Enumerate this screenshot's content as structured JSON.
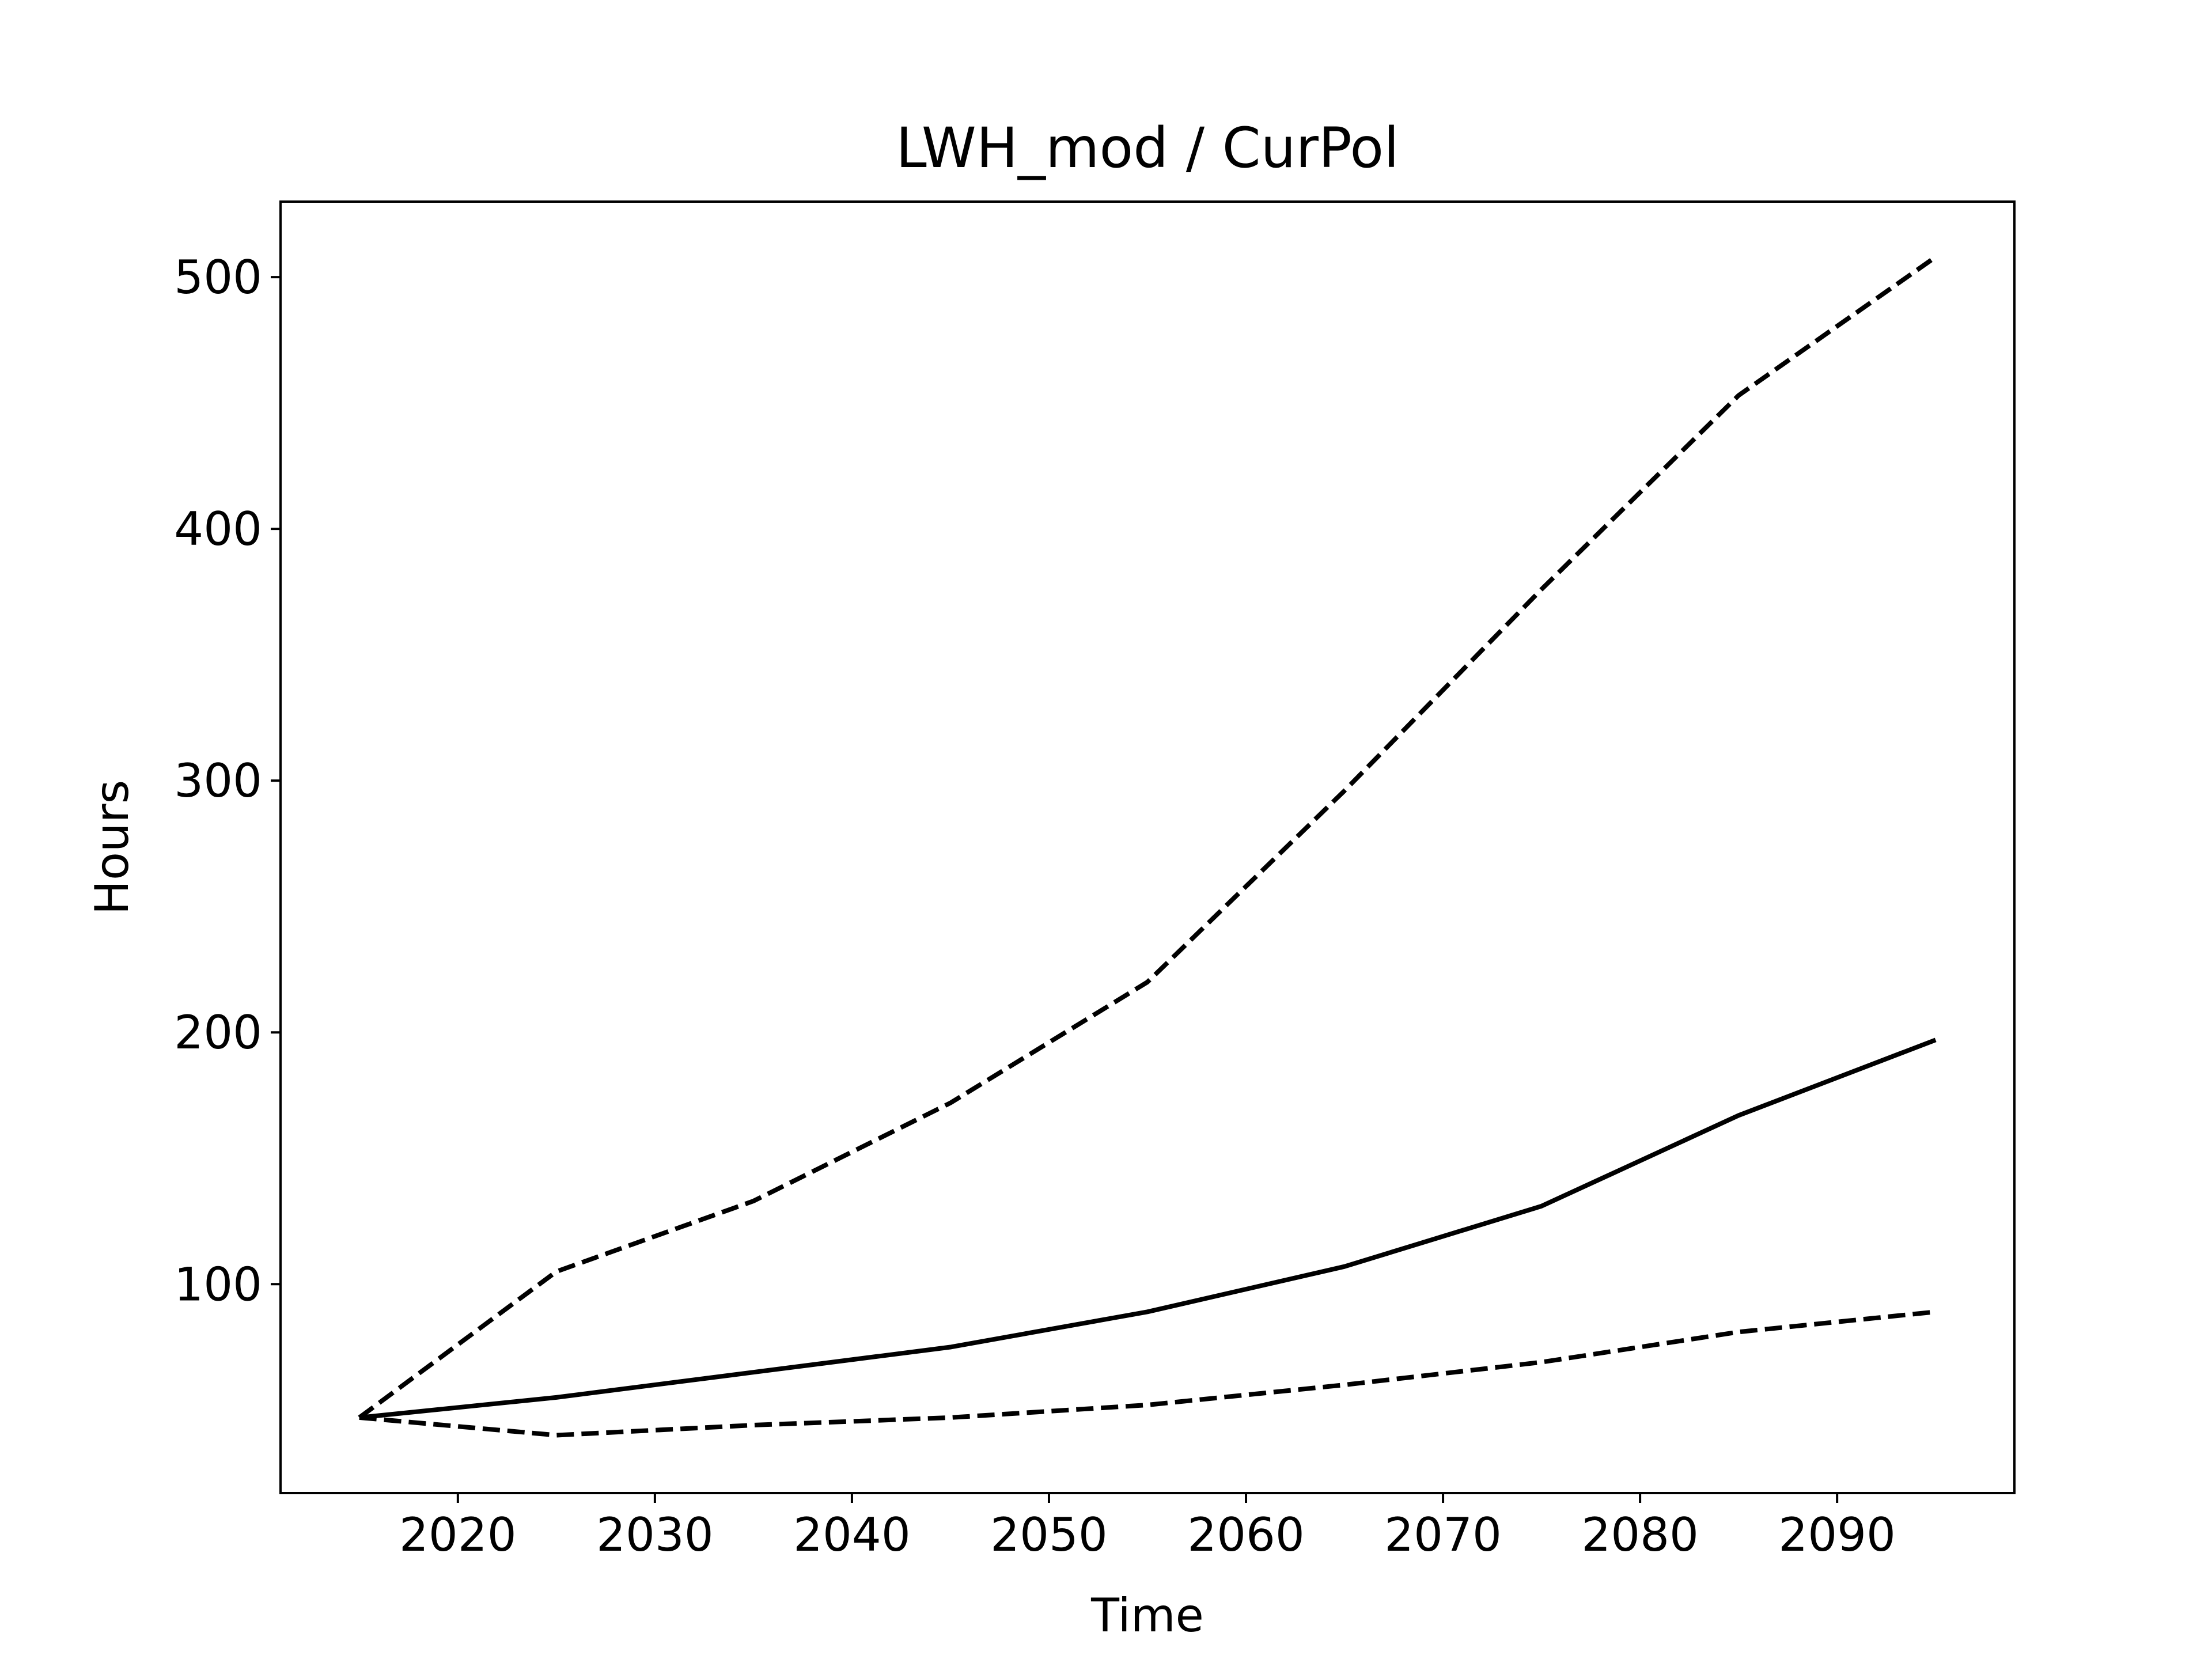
{
  "chart_data": {
    "type": "line",
    "title": "LWH_mod / CurPol",
    "xlabel": "Time",
    "ylabel": "Hours",
    "xlim": [
      2011,
      2099
    ],
    "ylim": [
      17,
      530
    ],
    "grid": false,
    "x_ticks": [
      2020,
      2030,
      2040,
      2050,
      2060,
      2070,
      2080,
      2090
    ],
    "y_ticks": [
      100,
      200,
      300,
      400,
      500
    ],
    "x": [
      2015,
      2025,
      2035,
      2045,
      2055,
      2065,
      2075,
      2085,
      2095
    ],
    "series": [
      {
        "style": "dashed",
        "color": "#000000",
        "values": [
          47,
          105,
          133,
          172,
          220,
          296,
          376,
          453,
          508
        ]
      },
      {
        "style": "solid",
        "color": "#000000",
        "values": [
          47,
          55,
          65,
          75,
          89,
          107,
          131,
          167,
          197
        ]
      },
      {
        "style": "dashed",
        "color": "#000000",
        "values": [
          47,
          40,
          44,
          47,
          52,
          60,
          69,
          81,
          89
        ]
      }
    ]
  }
}
